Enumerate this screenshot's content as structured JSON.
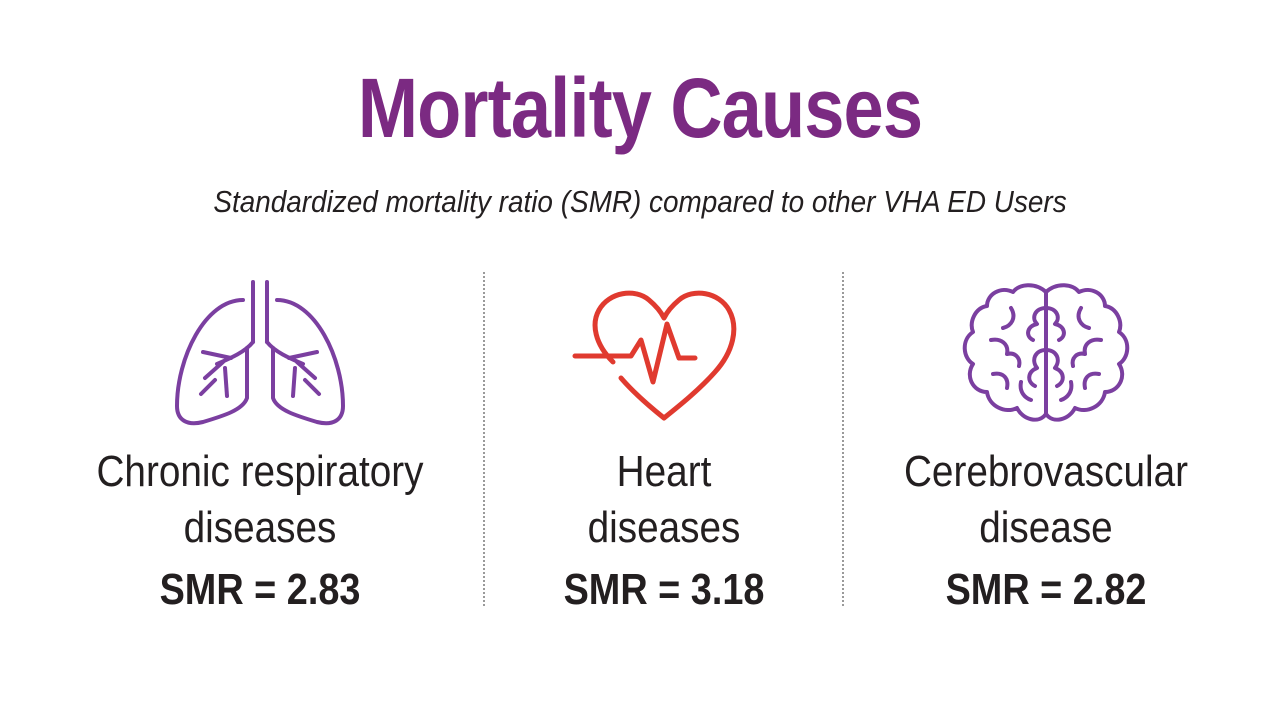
{
  "title": "Mortality Causes",
  "subtitle": "Standardized mortality ratio (SMR) compared to other VHA ED Users",
  "colors": {
    "title": "#7b2a82",
    "text": "#231f20",
    "lungs_icon": "#7b3fa0",
    "heart_icon": "#e03a2f",
    "brain_icon": "#7b3fa0",
    "divider": "#9a9a9a"
  },
  "causes": [
    {
      "icon": "lungs-icon",
      "label_line1": "Chronic respiratory",
      "label_line2": "diseases",
      "smr": "SMR = 2.83"
    },
    {
      "icon": "heart-icon",
      "label_line1": "Heart",
      "label_line2": "diseases",
      "smr": "SMR = 3.18"
    },
    {
      "icon": "brain-icon",
      "label_line1": "Cerebrovascular",
      "label_line2": "disease",
      "smr": "SMR = 2.82"
    }
  ]
}
